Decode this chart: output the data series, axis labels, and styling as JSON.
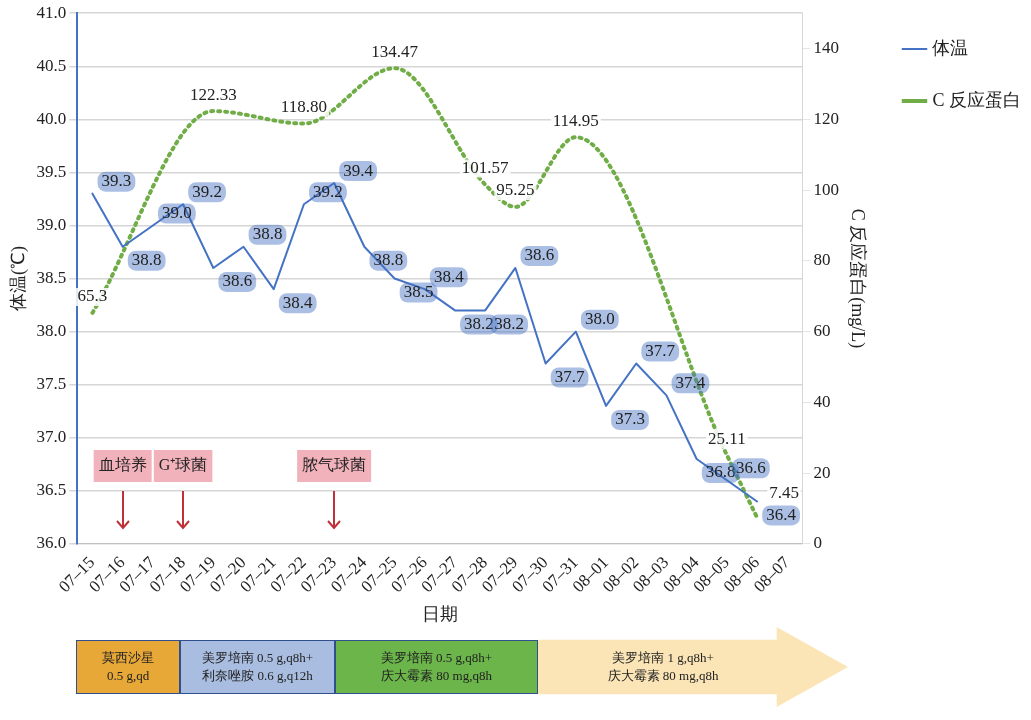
{
  "chart_data": {
    "type": "line",
    "xlabel": "日期",
    "ylabel": "体温(℃)",
    "y2label": "C 反应蛋白(mg/L)",
    "categories": [
      "07–15",
      "07–16",
      "07–17",
      "07–18",
      "07–19",
      "07–20",
      "07–21",
      "07–22",
      "07–23",
      "07–24",
      "07–25",
      "07–26",
      "07–27",
      "07–28",
      "07–29",
      "07–30",
      "07–31",
      "08–01",
      "08–02",
      "08–03",
      "08–04",
      "08–05",
      "08–06",
      "08–07"
    ],
    "series": [
      {
        "name": "体温",
        "color": "#4472c4",
        "line_style": "solid",
        "values": [
          39.3,
          38.8,
          39.0,
          39.2,
          38.6,
          38.8,
          38.4,
          39.2,
          39.4,
          38.8,
          38.5,
          38.4,
          38.2,
          38.2,
          38.6,
          37.7,
          38.0,
          37.3,
          37.7,
          37.4,
          36.8,
          36.6,
          36.4,
          null
        ],
        "value_labels": [
          "39.3",
          "38.8",
          "39.0",
          "39.2",
          "38.6",
          "38.8",
          "38.4",
          "39.2",
          "39.4",
          "38.8",
          "38.5",
          "38.4",
          "38.2",
          "38.2",
          "38.6",
          "37.7",
          "38.0",
          "37.3",
          "37.7",
          "37.4",
          "36.8",
          "36.6",
          "36.4",
          null
        ]
      },
      {
        "name": "C 反应蛋白",
        "color": "#70ad47",
        "line_style": "dotted",
        "axis": "y2",
        "values": [
          65.3,
          null,
          null,
          null,
          122.33,
          null,
          null,
          118.8,
          null,
          null,
          134.47,
          null,
          null,
          101.57,
          95.25,
          null,
          114.95,
          null,
          null,
          null,
          null,
          25.11,
          7.45,
          null
        ],
        "value_labels": [
          "65.3",
          null,
          null,
          null,
          "122.33",
          null,
          null,
          "118.80",
          null,
          null,
          "134.47",
          null,
          null,
          "101.57",
          "95.25",
          null,
          "114.95",
          null,
          null,
          null,
          null,
          "25.11",
          "7.45",
          null
        ]
      }
    ],
    "ylim": [
      36,
      41
    ],
    "yticks": [
      {
        "value": 36,
        "label": "36.0"
      },
      36.5,
      {
        "value": 37,
        "label": "37.0"
      },
      37.5,
      {
        "value": 38,
        "label": "38.0"
      },
      38.5,
      {
        "value": 39,
        "label": "39.0"
      },
      39.5,
      {
        "value": 40,
        "label": "40.0"
      },
      40.5,
      {
        "value": 41,
        "label": "41.0"
      }
    ],
    "y2lim": [
      0,
      150
    ],
    "y2ticks": [
      0,
      20,
      40,
      60,
      80,
      100,
      120,
      140
    ],
    "grid": "y",
    "legend": "top right",
    "marker": "none",
    "annotations": [
      {
        "text": "血培养",
        "x": "07–16"
      },
      {
        "text": "G⁺球菌",
        "x": "07–18"
      },
      {
        "text": "脓气球菌",
        "x": "07–23"
      },
      "莫西沙星\n0.5 g,qd",
      "美罗培南 0.5 g,q8h+\n利奈唑胺 0.6 g,q12h",
      "美罗培南 0.5 g,q8h+\n庆大霉素 80 mg,q8h",
      "美罗培南 1 g,q8h+\n庆大霉素 80 mg,q8h"
    ]
  }
}
